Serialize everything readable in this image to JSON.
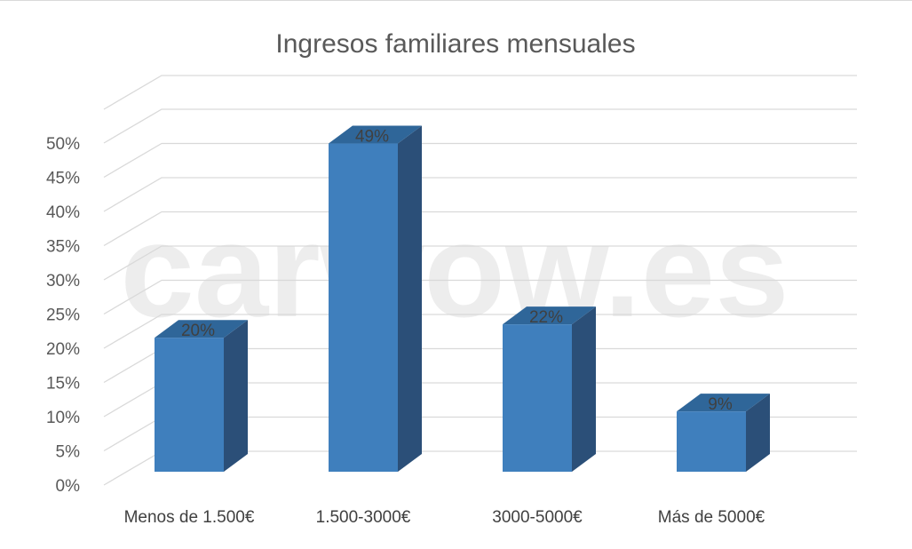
{
  "chart_data": {
    "type": "bar",
    "title": "Ingresos familiares mensuales",
    "categories": [
      "Menos de 1.500€",
      "1.500-3000€",
      "3000-5000€",
      "Más de 5000€"
    ],
    "values": [
      20,
      49,
      22,
      9
    ],
    "data_labels": [
      "20%",
      "49%",
      "22%",
      "9%"
    ],
    "yticks": [
      "0%",
      "5%",
      "10%",
      "15%",
      "20%",
      "25%",
      "30%",
      "35%",
      "40%",
      "45%",
      "50%"
    ],
    "ylim": [
      0,
      50
    ],
    "grid": true,
    "legend": "none",
    "style": "3d-column",
    "colors": {
      "bar_front": "#3f7fbd",
      "bar_top": "#2f6699",
      "bar_side": "#2b4f78",
      "grid": "#d9d9d9"
    }
  },
  "watermark": "carwow.es"
}
